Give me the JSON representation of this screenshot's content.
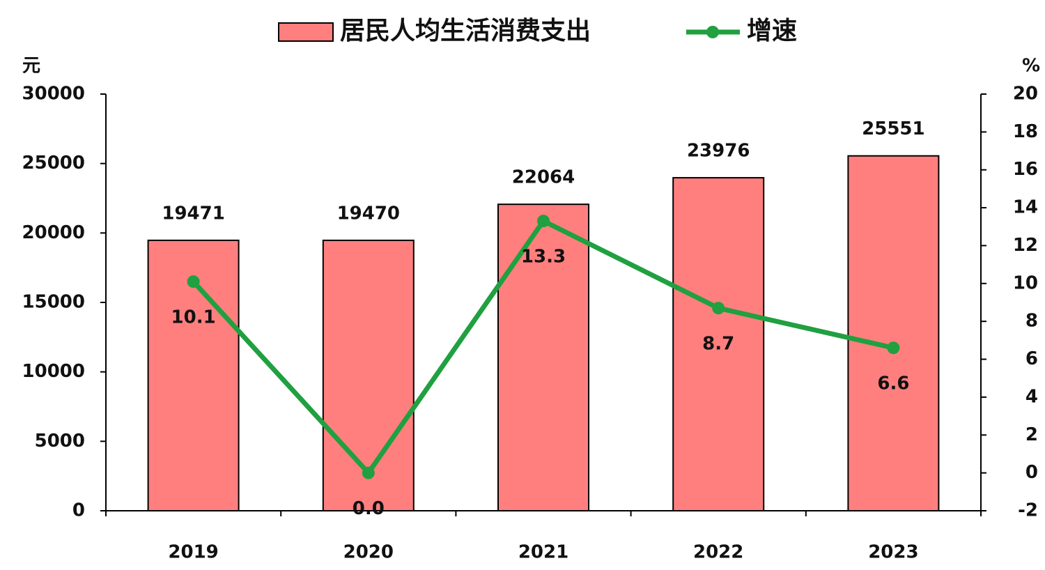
{
  "chart_data": {
    "type": "bar-line",
    "y_unit": "元",
    "y2_unit": "%",
    "categories": [
      "2019",
      "2020",
      "2021",
      "2022",
      "2023"
    ],
    "series": [
      {
        "name": "居民人均生活消费支出",
        "type": "bar",
        "color": "#ff7f7f",
        "values": [
          19471,
          19470,
          22064,
          23976,
          25551
        ]
      },
      {
        "name": "增速",
        "type": "line",
        "axis": "y2",
        "color": "#20a040",
        "values": [
          10.1,
          0,
          13.3,
          8.7,
          6.6
        ],
        "value_labels": [
          "10.1",
          "0.0",
          "13.3",
          "8.7",
          "6.6"
        ]
      }
    ],
    "ylim": [
      0,
      30000
    ],
    "yticks": [
      0,
      5000,
      10000,
      15000,
      20000,
      25000,
      30000
    ],
    "y2lim": [
      -2,
      20
    ],
    "y2ticks": [
      -2,
      0,
      2,
      4,
      6,
      8,
      10,
      12,
      14,
      16,
      18,
      20
    ],
    "legend": "top"
  }
}
